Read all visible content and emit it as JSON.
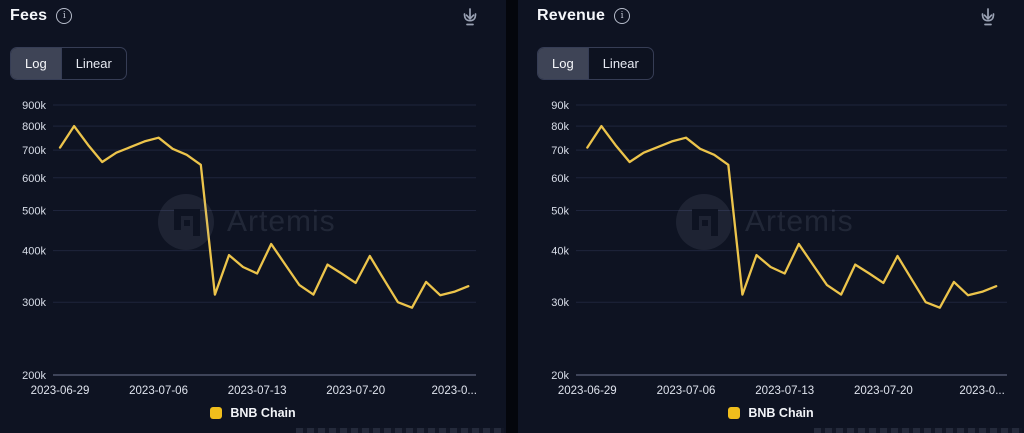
{
  "page": {
    "background": "#04060C",
    "panel_background": "#0E1322",
    "accent": "#F0BE1C",
    "line_color": "#ECC44B"
  },
  "panels": [
    {
      "title": "Fees",
      "icons": {
        "info": "info-icon",
        "download": "download-icon"
      },
      "scale_toggle": {
        "options": [
          "Log",
          "Linear"
        ],
        "selected": "Log"
      },
      "watermark": "Artemis",
      "legend": [
        {
          "label": "BNB Chain",
          "color": "#F0BE1C"
        }
      ]
    },
    {
      "title": "Revenue",
      "icons": {
        "info": "info-icon",
        "download": "download-icon"
      },
      "scale_toggle": {
        "options": [
          "Log",
          "Linear"
        ],
        "selected": "Log"
      },
      "watermark": "Artemis",
      "legend": [
        {
          "label": "BNB Chain",
          "color": "#F0BE1C"
        }
      ]
    }
  ],
  "chart_data": [
    {
      "type": "line",
      "title": "Fees",
      "yscale": "log",
      "grid": true,
      "legend_position": "bottom",
      "ylim": [
        200000,
        900000
      ],
      "yticks": [
        {
          "label": "900k",
          "value": 900000
        },
        {
          "label": "800k",
          "value": 800000
        },
        {
          "label": "700k",
          "value": 700000
        },
        {
          "label": "600k",
          "value": 600000
        },
        {
          "label": "500k",
          "value": 500000
        },
        {
          "label": "400k",
          "value": 400000
        },
        {
          "label": "300k",
          "value": 300000
        },
        {
          "label": "200k",
          "value": 200000
        }
      ],
      "xtick_labels": [
        "2023-06-29",
        "2023-07-06",
        "2023-07-13",
        "2023-07-20",
        "2023-0..."
      ],
      "x": [
        "2023-06-29",
        "2023-06-30",
        "2023-07-01",
        "2023-07-02",
        "2023-07-03",
        "2023-07-04",
        "2023-07-05",
        "2023-07-06",
        "2023-07-07",
        "2023-07-08",
        "2023-07-09",
        "2023-07-10",
        "2023-07-11",
        "2023-07-12",
        "2023-07-13",
        "2023-07-14",
        "2023-07-15",
        "2023-07-16",
        "2023-07-17",
        "2023-07-18",
        "2023-07-19",
        "2023-07-20",
        "2023-07-21",
        "2023-07-22",
        "2023-07-23",
        "2023-07-24",
        "2023-07-25",
        "2023-07-26",
        "2023-07-27",
        "2023-07-28"
      ],
      "series": [
        {
          "name": "BNB Chain",
          "color": "#F0BE1C",
          "values": [
            710000,
            800000,
            720000,
            655000,
            690000,
            712000,
            735000,
            750000,
            705000,
            682000,
            645000,
            313000,
            390000,
            365000,
            352000,
            415000,
            370000,
            330000,
            313000,
            370000,
            352000,
            334000,
            388000,
            341000,
            300000,
            291000,
            336000,
            312000,
            318000,
            328000
          ]
        }
      ]
    },
    {
      "type": "line",
      "title": "Revenue",
      "yscale": "log",
      "grid": true,
      "legend_position": "bottom",
      "ylim": [
        20000,
        90000
      ],
      "yticks": [
        {
          "label": "90k",
          "value": 90000
        },
        {
          "label": "80k",
          "value": 80000
        },
        {
          "label": "70k",
          "value": 70000
        },
        {
          "label": "60k",
          "value": 60000
        },
        {
          "label": "50k",
          "value": 50000
        },
        {
          "label": "40k",
          "value": 40000
        },
        {
          "label": "30k",
          "value": 30000
        },
        {
          "label": "20k",
          "value": 20000
        }
      ],
      "xtick_labels": [
        "2023-06-29",
        "2023-07-06",
        "2023-07-13",
        "2023-07-20",
        "2023-0..."
      ],
      "x": [
        "2023-06-29",
        "2023-06-30",
        "2023-07-01",
        "2023-07-02",
        "2023-07-03",
        "2023-07-04",
        "2023-07-05",
        "2023-07-06",
        "2023-07-07",
        "2023-07-08",
        "2023-07-09",
        "2023-07-10",
        "2023-07-11",
        "2023-07-12",
        "2023-07-13",
        "2023-07-14",
        "2023-07-15",
        "2023-07-16",
        "2023-07-17",
        "2023-07-18",
        "2023-07-19",
        "2023-07-20",
        "2023-07-21",
        "2023-07-22",
        "2023-07-23",
        "2023-07-24",
        "2023-07-25",
        "2023-07-26",
        "2023-07-27",
        "2023-07-28"
      ],
      "series": [
        {
          "name": "BNB Chain",
          "color": "#F0BE1C",
          "values": [
            71000,
            80000,
            72000,
            65500,
            69000,
            71200,
            73500,
            75000,
            70500,
            68200,
            64500,
            31300,
            39000,
            36500,
            35200,
            41500,
            37000,
            33000,
            31300,
            37000,
            35200,
            33400,
            38800,
            34100,
            30000,
            29100,
            33600,
            31200,
            31800,
            32800
          ]
        }
      ]
    }
  ]
}
